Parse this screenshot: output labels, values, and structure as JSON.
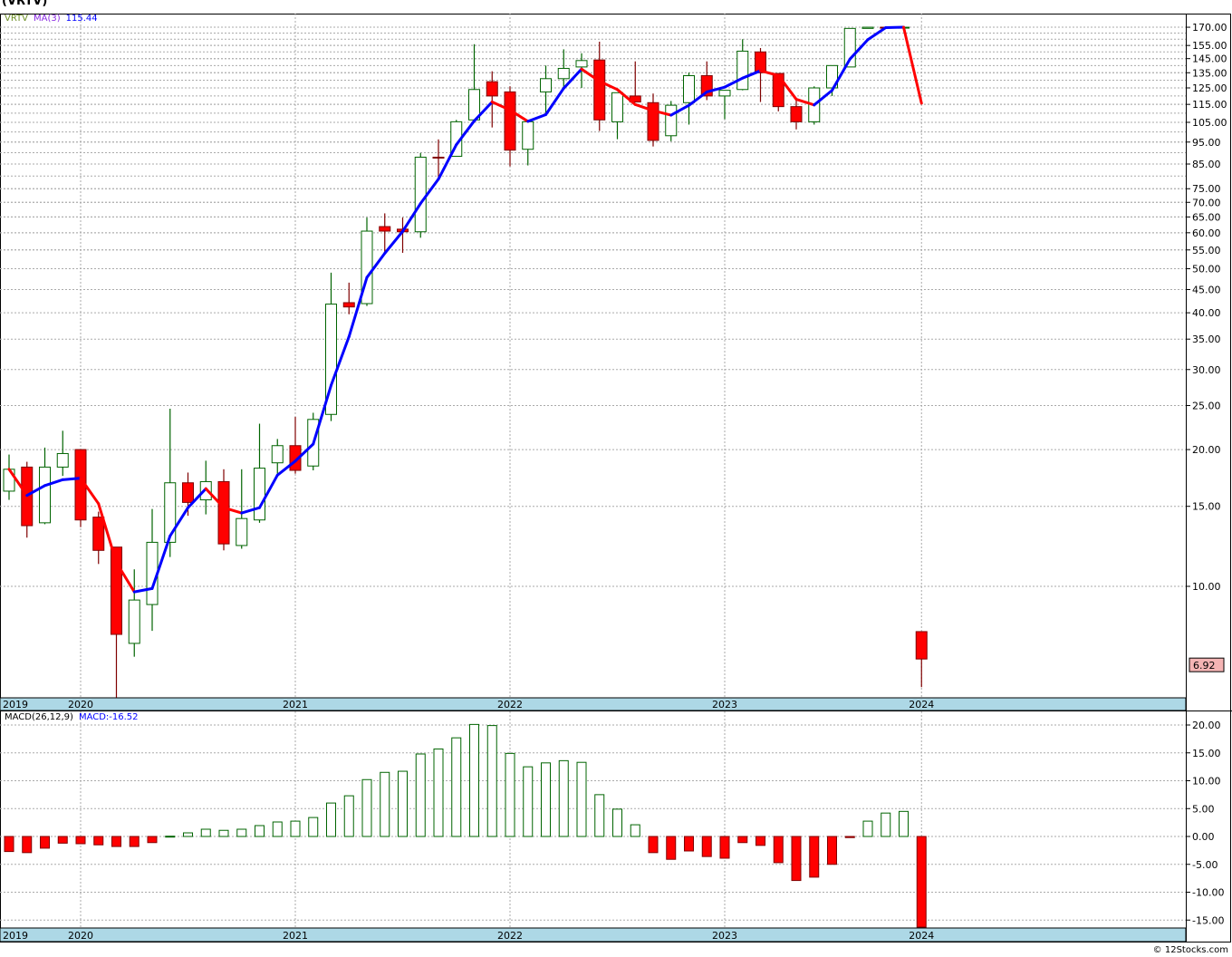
{
  "header": {
    "title": "(VRTV)",
    "copyright": "© 12Stocks.com"
  },
  "legend": {
    "symbol": "VRTV",
    "ma_label": "MA(3)",
    "ma_value": "115.44",
    "macd_label": "MACD(26,12,9)",
    "macd_value": "MACD:-16.52",
    "last_price": "6.92"
  },
  "colors": {
    "up": "#006400",
    "down": "#ff0000",
    "down_edge": "#800000",
    "ma_up": "#0000ff",
    "ma_down": "#ff0000",
    "strip": "#add8e6",
    "price_tag": "#f4b4b4"
  },
  "chart_data": [
    {
      "type": "candlestick",
      "title": "VRTV monthly",
      "scale": "log",
      "ylim": [
        5.5,
        175
      ],
      "y_ticks": [
        "170.00",
        "155.00",
        "145.00",
        "135.00",
        "125.00",
        "115.00",
        "105.00",
        "95.00",
        "85.00",
        "75.00",
        "70.00",
        "65.00",
        "60.00",
        "55.00",
        "50.00",
        "45.00",
        "40.00",
        "35.00",
        "30.00",
        "25.00",
        "20.00",
        "15.00",
        "10.00"
      ],
      "x_labels": [
        {
          "index": -0.4,
          "label": "2019"
        },
        {
          "index": 4,
          "label": "2020"
        },
        {
          "index": 16,
          "label": "2021"
        },
        {
          "index": 28,
          "label": "2022"
        },
        {
          "index": 40,
          "label": "2023"
        },
        {
          "index": 51,
          "label": "2024"
        }
      ],
      "ohlc": [
        [
          16.2,
          19.5,
          15.5,
          18.1
        ],
        [
          18.3,
          18.8,
          12.8,
          13.6
        ],
        [
          13.8,
          20.2,
          13.7,
          18.3
        ],
        [
          18.3,
          22.0,
          17.5,
          19.6
        ],
        [
          20.0,
          20.0,
          13.5,
          14.0
        ],
        [
          14.2,
          14.6,
          11.2,
          12.0
        ],
        [
          12.2,
          12.2,
          5.69,
          7.84
        ],
        [
          7.49,
          10.9,
          7.0,
          9.33
        ],
        [
          9.12,
          14.8,
          7.98,
          12.5
        ],
        [
          12.5,
          24.6,
          11.6,
          16.9
        ],
        [
          16.9,
          17.8,
          14.3,
          15.3
        ],
        [
          15.5,
          18.9,
          14.4,
          17.0
        ],
        [
          17.0,
          18.1,
          12.0,
          12.4
        ],
        [
          12.3,
          18.1,
          12.1,
          14.1
        ],
        [
          14.0,
          22.8,
          13.8,
          18.2
        ],
        [
          18.7,
          21.1,
          17.7,
          20.4
        ],
        [
          20.4,
          23.6,
          17.7,
          18.0
        ],
        [
          18.4,
          24.1,
          18.0,
          23.3
        ],
        [
          23.9,
          49.0,
          23.1,
          41.8
        ],
        [
          42.1,
          46.6,
          39.7,
          41.2
        ],
        [
          41.9,
          64.8,
          41.4,
          60.5
        ],
        [
          61.9,
          66.2,
          54.2,
          60.5
        ],
        [
          61.1,
          64.8,
          54.2,
          60.3
        ],
        [
          60.3,
          89.9,
          58.5,
          88.0
        ],
        [
          88.0,
          96.3,
          78.7,
          87.9
        ],
        [
          88.4,
          106.3,
          88.4,
          105.3
        ],
        [
          106.3,
          156,
          106,
          124
        ],
        [
          129,
          136,
          102.3,
          120
        ],
        [
          122.5,
          126,
          84,
          91.2
        ],
        [
          91.6,
          105.3,
          84.4,
          105.3
        ],
        [
          122.5,
          140,
          110,
          131
        ],
        [
          131,
          152,
          125,
          138
        ],
        [
          139,
          149,
          125,
          143.6
        ],
        [
          144,
          158,
          100.5,
          106.3
        ],
        [
          105.3,
          122,
          96.4,
          122
        ],
        [
          120,
          143,
          116.4,
          116.4
        ],
        [
          116,
          121.5,
          92.9,
          95.8
        ],
        [
          98.1,
          117,
          95.4,
          114.5
        ],
        [
          116,
          135,
          103.8,
          133
        ],
        [
          133,
          143,
          117.5,
          120
        ],
        [
          120,
          123.5,
          106.7,
          123.5
        ],
        [
          124,
          160,
          123.5,
          150.6
        ],
        [
          150,
          153,
          116.4,
          135
        ],
        [
          134.5,
          134.5,
          111,
          113.7
        ],
        [
          113.7,
          119,
          101.3,
          105.3
        ],
        [
          105.3,
          126,
          103.8,
          125
        ],
        [
          125,
          140,
          120,
          140
        ],
        [
          139,
          169,
          139,
          169
        ],
        [
          169,
          170,
          169,
          170
        ],
        [
          170,
          170,
          170,
          170
        ],
        [
          169.8,
          170.1,
          169.8,
          170
        ],
        [
          7.95,
          7.95,
          6.0,
          6.92
        ]
      ],
      "ma_period": 3
    },
    {
      "type": "bar",
      "title": "MACD(26,12,9)",
      "ylim": [
        -16.5,
        21.5
      ],
      "y_ticks": [
        "20.00",
        "15.00",
        "10.00",
        "5.00",
        "0.00",
        "-5.00",
        "-10.00",
        "-15.00"
      ],
      "values": [
        -2.7,
        -2.9,
        -2.1,
        -1.2,
        -1.3,
        -1.5,
        -1.8,
        -1.8,
        -1.1,
        0.05,
        0.65,
        1.3,
        1.1,
        1.3,
        1.95,
        2.6,
        2.75,
        3.4,
        6.0,
        7.3,
        10.2,
        11.5,
        11.7,
        14.8,
        15.7,
        17.7,
        20.1,
        19.9,
        14.9,
        12.5,
        13.2,
        13.6,
        13.3,
        7.5,
        4.9,
        2.1,
        -2.9,
        -4.1,
        -2.6,
        -3.6,
        -3.9,
        -1.1,
        -1.6,
        -4.7,
        -7.9,
        -7.3,
        -5.0,
        -0.2,
        2.75,
        4.2,
        4.5,
        -16.52
      ]
    }
  ]
}
